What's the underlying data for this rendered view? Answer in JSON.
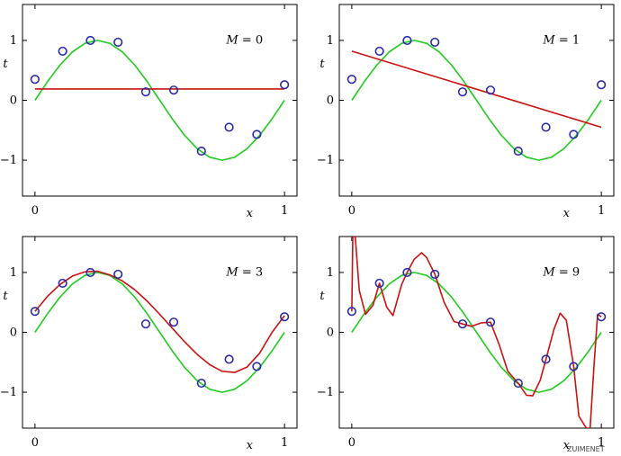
{
  "watermark": "ZUIMENET",
  "chart_data": [
    {
      "type": "line",
      "title": "M = 0",
      "xlabel": "x",
      "ylabel": "t",
      "xlim": [
        -0.05,
        1.05
      ],
      "ylim": [
        -1.6,
        1.6
      ],
      "x_ticks": [
        0,
        1
      ],
      "y_ticks": [
        -1,
        0,
        1
      ],
      "colors": {
        "true": "#22cc22",
        "fit": "#cc1111",
        "points": "#2a2aaa"
      },
      "points": {
        "x": [
          0.0,
          0.111,
          0.222,
          0.333,
          0.444,
          0.556,
          0.667,
          0.778,
          0.889,
          1.0
        ],
        "y": [
          0.35,
          0.82,
          1.0,
          0.97,
          0.14,
          0.17,
          -0.85,
          -0.45,
          -0.57,
          0.26
        ]
      },
      "series": [
        {
          "name": "sin(2πx)",
          "x": [
            0,
            0.05,
            0.1,
            0.15,
            0.2,
            0.25,
            0.3,
            0.35,
            0.4,
            0.45,
            0.5,
            0.55,
            0.6,
            0.65,
            0.7,
            0.75,
            0.8,
            0.85,
            0.9,
            0.95,
            1.0
          ],
          "y": [
            0,
            0.309,
            0.588,
            0.809,
            0.951,
            1.0,
            0.951,
            0.809,
            0.588,
            0.309,
            0,
            -0.309,
            -0.588,
            -0.809,
            -0.951,
            -1.0,
            -0.951,
            -0.809,
            -0.588,
            -0.309,
            0
          ]
        },
        {
          "name": "fit",
          "x": [
            0,
            1
          ],
          "y": [
            0.19,
            0.19
          ]
        }
      ]
    },
    {
      "type": "line",
      "title": "M = 1",
      "xlabel": "x",
      "ylabel": "t",
      "xlim": [
        -0.05,
        1.05
      ],
      "ylim": [
        -1.6,
        1.6
      ],
      "x_ticks": [
        0,
        1
      ],
      "y_ticks": [
        -1,
        0,
        1
      ],
      "colors": {
        "true": "#22cc22",
        "fit": "#cc1111",
        "points": "#2a2aaa"
      },
      "points": {
        "x": [
          0.0,
          0.111,
          0.222,
          0.333,
          0.444,
          0.556,
          0.667,
          0.778,
          0.889,
          1.0
        ],
        "y": [
          0.35,
          0.82,
          1.0,
          0.97,
          0.14,
          0.17,
          -0.85,
          -0.45,
          -0.57,
          0.26
        ]
      },
      "series": [
        {
          "name": "sin(2πx)",
          "x": [
            0,
            0.05,
            0.1,
            0.15,
            0.2,
            0.25,
            0.3,
            0.35,
            0.4,
            0.45,
            0.5,
            0.55,
            0.6,
            0.65,
            0.7,
            0.75,
            0.8,
            0.85,
            0.9,
            0.95,
            1.0
          ],
          "y": [
            0,
            0.309,
            0.588,
            0.809,
            0.951,
            1.0,
            0.951,
            0.809,
            0.588,
            0.309,
            0,
            -0.309,
            -0.588,
            -0.809,
            -0.951,
            -1.0,
            -0.951,
            -0.809,
            -0.588,
            -0.309,
            0
          ]
        },
        {
          "name": "fit",
          "x": [
            0,
            1
          ],
          "y": [
            0.82,
            -0.45
          ]
        }
      ]
    },
    {
      "type": "line",
      "title": "M = 3",
      "xlabel": "x",
      "ylabel": "t",
      "xlim": [
        -0.05,
        1.05
      ],
      "ylim": [
        -1.6,
        1.6
      ],
      "x_ticks": [
        0,
        1
      ],
      "y_ticks": [
        -1,
        0,
        1
      ],
      "colors": {
        "true": "#22cc22",
        "fit": "#cc1111",
        "points": "#2a2aaa"
      },
      "points": {
        "x": [
          0.0,
          0.111,
          0.222,
          0.333,
          0.444,
          0.556,
          0.667,
          0.778,
          0.889,
          1.0
        ],
        "y": [
          0.35,
          0.82,
          1.0,
          0.97,
          0.14,
          0.17,
          -0.85,
          -0.45,
          -0.57,
          0.26
        ]
      },
      "series": [
        {
          "name": "sin(2πx)",
          "x": [
            0,
            0.05,
            0.1,
            0.15,
            0.2,
            0.25,
            0.3,
            0.35,
            0.4,
            0.45,
            0.5,
            0.55,
            0.6,
            0.65,
            0.7,
            0.75,
            0.8,
            0.85,
            0.9,
            0.95,
            1.0
          ],
          "y": [
            0,
            0.309,
            0.588,
            0.809,
            0.951,
            1.0,
            0.951,
            0.809,
            0.588,
            0.309,
            0,
            -0.309,
            -0.588,
            -0.809,
            -0.951,
            -1.0,
            -0.951,
            -0.809,
            -0.588,
            -0.309,
            0
          ]
        },
        {
          "name": "fit",
          "x": [
            0,
            0.05,
            0.1,
            0.15,
            0.2,
            0.25,
            0.3,
            0.35,
            0.4,
            0.45,
            0.5,
            0.55,
            0.6,
            0.65,
            0.7,
            0.75,
            0.8,
            0.85,
            0.9,
            0.95,
            1.0
          ],
          "y": [
            0.35,
            0.6,
            0.8,
            0.94,
            1.01,
            1.02,
            0.96,
            0.86,
            0.71,
            0.52,
            0.3,
            0.07,
            -0.16,
            -0.37,
            -0.54,
            -0.65,
            -0.67,
            -0.58,
            -0.35,
            0.0,
            0.28
          ]
        }
      ]
    },
    {
      "type": "line",
      "title": "M = 9",
      "xlabel": "x",
      "ylabel": "t",
      "xlim": [
        -0.05,
        1.05
      ],
      "ylim": [
        -1.6,
        1.6
      ],
      "x_ticks": [
        0,
        1
      ],
      "y_ticks": [
        -1,
        0,
        1
      ],
      "colors": {
        "true": "#22cc22",
        "fit": "#cc1111",
        "points": "#2a2aaa"
      },
      "points": {
        "x": [
          0.0,
          0.111,
          0.222,
          0.333,
          0.444,
          0.556,
          0.667,
          0.778,
          0.889,
          1.0
        ],
        "y": [
          0.35,
          0.82,
          1.0,
          0.97,
          0.14,
          0.17,
          -0.85,
          -0.45,
          -0.57,
          0.26
        ]
      },
      "series": [
        {
          "name": "sin(2πx)",
          "x": [
            0,
            0.05,
            0.1,
            0.15,
            0.2,
            0.25,
            0.3,
            0.35,
            0.4,
            0.45,
            0.5,
            0.55,
            0.6,
            0.65,
            0.7,
            0.75,
            0.8,
            0.85,
            0.9,
            0.95,
            1.0
          ],
          "y": [
            0,
            0.309,
            0.588,
            0.809,
            0.951,
            1.0,
            0.951,
            0.809,
            0.588,
            0.309,
            0,
            -0.309,
            -0.588,
            -0.809,
            -0.951,
            -1.0,
            -0.951,
            -0.809,
            -0.588,
            -0.309,
            0
          ]
        },
        {
          "name": "fit",
          "x": [
            0.0,
            0.004,
            0.014,
            0.03,
            0.055,
            0.085,
            0.111,
            0.14,
            0.165,
            0.2,
            0.222,
            0.25,
            0.28,
            0.3,
            0.333,
            0.37,
            0.41,
            0.444,
            0.48,
            0.52,
            0.556,
            0.59,
            0.625,
            0.667,
            0.7,
            0.725,
            0.755,
            0.778,
            0.81,
            0.835,
            0.86,
            0.889,
            0.91,
            0.94,
            0.955,
            0.97,
            0.985,
            1.0
          ],
          "y": [
            0.35,
            1.6,
            1.6,
            0.7,
            0.3,
            0.45,
            0.82,
            0.42,
            0.28,
            0.8,
            1.0,
            1.22,
            1.33,
            1.25,
            0.97,
            0.5,
            0.18,
            0.14,
            0.1,
            0.16,
            0.17,
            -0.2,
            -0.65,
            -0.85,
            -1.05,
            -1.06,
            -0.8,
            -0.45,
            0.05,
            0.32,
            0.2,
            -0.57,
            -1.4,
            -1.6,
            -1.6,
            -0.6,
            0.3,
            0.26
          ]
        }
      ]
    }
  ]
}
